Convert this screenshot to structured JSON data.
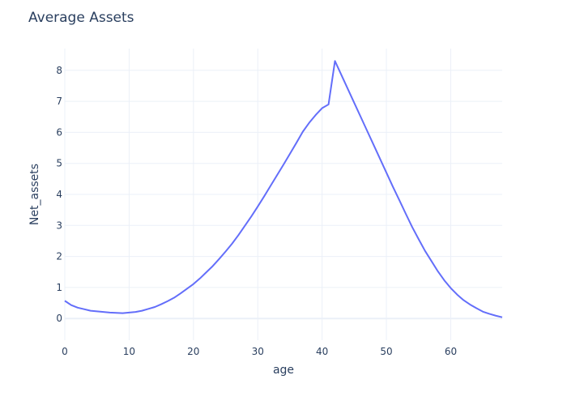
{
  "chart_data": {
    "type": "line",
    "title": "Average Assets",
    "xlabel": "age",
    "ylabel": "Net_assets",
    "xlim": [
      0,
      68
    ],
    "ylim": [
      -0.7,
      8.7
    ],
    "x_ticks": [
      0,
      10,
      20,
      30,
      40,
      50,
      60
    ],
    "y_ticks": [
      0,
      1,
      2,
      3,
      4,
      5,
      6,
      7,
      8
    ],
    "grid": true,
    "line_color": "#636efa",
    "series": [
      {
        "x": [
          0,
          1,
          2,
          3,
          4,
          5,
          6,
          7,
          8,
          9,
          10,
          11,
          12,
          13,
          14,
          15,
          16,
          17,
          18,
          19,
          20,
          21,
          22,
          23,
          24,
          25,
          26,
          27,
          28,
          29,
          30,
          31,
          32,
          33,
          34,
          35,
          36,
          37,
          38,
          39,
          40,
          41,
          42,
          43,
          44,
          45,
          46,
          47,
          48,
          49,
          50,
          51,
          52,
          53,
          54,
          55,
          56,
          57,
          58,
          59,
          60,
          61,
          62,
          63,
          64,
          65,
          66,
          67,
          68
        ],
        "y": [
          0.57,
          0.43,
          0.35,
          0.3,
          0.25,
          0.23,
          0.21,
          0.19,
          0.18,
          0.17,
          0.19,
          0.21,
          0.25,
          0.31,
          0.37,
          0.46,
          0.56,
          0.67,
          0.81,
          0.96,
          1.11,
          1.29,
          1.49,
          1.69,
          1.92,
          2.16,
          2.41,
          2.69,
          2.99,
          3.29,
          3.61,
          3.94,
          4.28,
          4.62,
          4.96,
          5.31,
          5.66,
          6.02,
          6.31,
          6.56,
          6.78,
          6.9,
          8.3,
          7.85,
          7.4,
          6.95,
          6.5,
          6.05,
          5.6,
          5.15,
          4.7,
          4.25,
          3.82,
          3.38,
          2.95,
          2.56,
          2.18,
          1.85,
          1.52,
          1.23,
          0.98,
          0.77,
          0.59,
          0.45,
          0.33,
          0.22,
          0.15,
          0.09,
          0.04
        ]
      }
    ]
  }
}
